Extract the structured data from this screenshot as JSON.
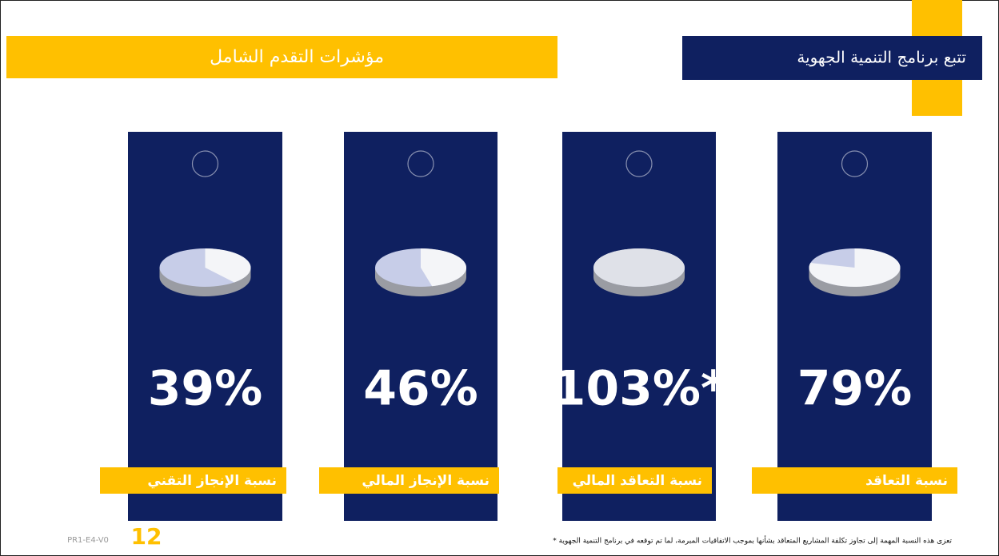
{
  "header": {
    "title": "تتبع برنامج التنمية الجهوية",
    "subtitle": "مؤشرات التقدم الشامل"
  },
  "cards": [
    {
      "label": "نسبة التعاقد",
      "value": 79,
      "value_label": "79%"
    },
    {
      "label": "نسبة التعاقد المالي",
      "value": 103,
      "value_label": "103%*"
    },
    {
      "label": "نسبة الإنجاز المالي",
      "value": 46,
      "value_label": "46%"
    },
    {
      "label": "نسبة الإنجاز التقني",
      "value": 39,
      "value_label": "39%"
    }
  ],
  "footer": {
    "note": "* تعزى هذه النسبة المهمة إلى تجاوز تكلفة المشاريع المتعاقد بشأنها بموجب الاتفاقيات المبرمة، لما تم توقعه في برنامج التنمية الجهوية",
    "page_number": "12",
    "code": "PR1-E4-V0"
  }
}
